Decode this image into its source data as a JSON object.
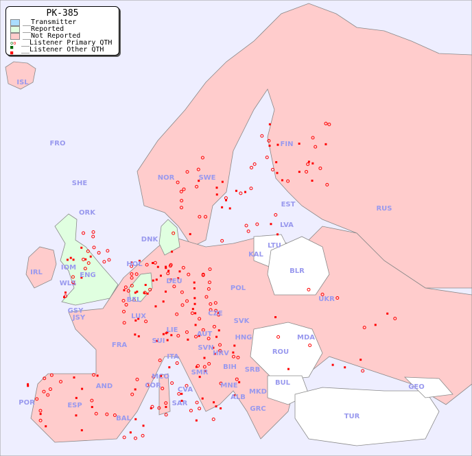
{
  "legend": {
    "title": "PK-385",
    "items": [
      {
        "label": "__Transmitter",
        "color": "#aaddff"
      },
      {
        "label": "__Reported",
        "color": "#e0ffe0"
      },
      {
        "label": "__Not Reported",
        "color": "#ffcccc"
      },
      {
        "label": "__Listener Primary QTH",
        "color": "#ff0000"
      },
      {
        "label": "__Listener Other QTH",
        "color": "#ff0000"
      }
    ]
  },
  "colors": {
    "sea": "#eeeeff",
    "not_reported": "#ffcccc",
    "reported": "#e0ffe0",
    "no_data": "#ffffff",
    "label": "#9999ee",
    "marker": "#ff0000"
  },
  "countries": [
    "ISL",
    "FRO",
    "SHE",
    "ORK",
    "NOR",
    "SWE",
    "FIN",
    "RUS",
    "EST",
    "LVA",
    "LTU",
    "KAL",
    "BLR",
    "DNK",
    "HOL",
    "DEU",
    "POL",
    "IRL",
    "IOM",
    "WLS",
    "ENG",
    "BEL",
    "LUX",
    "GSY",
    "JSY",
    "FRA",
    "SUI",
    "LIE",
    "AUT",
    "CZE",
    "SVK",
    "HNG",
    "UKR",
    "MDA",
    "ROU",
    "SVN",
    "HRV",
    "BIH",
    "SRB",
    "ITA",
    "MCO",
    "COR",
    "SMR",
    "CVA",
    "MNE",
    "ALB",
    "MKD",
    "BUL",
    "GRC",
    "TUR",
    "GEO",
    "AND",
    "ESP",
    "POR",
    "BAL",
    "SAR"
  ]
}
